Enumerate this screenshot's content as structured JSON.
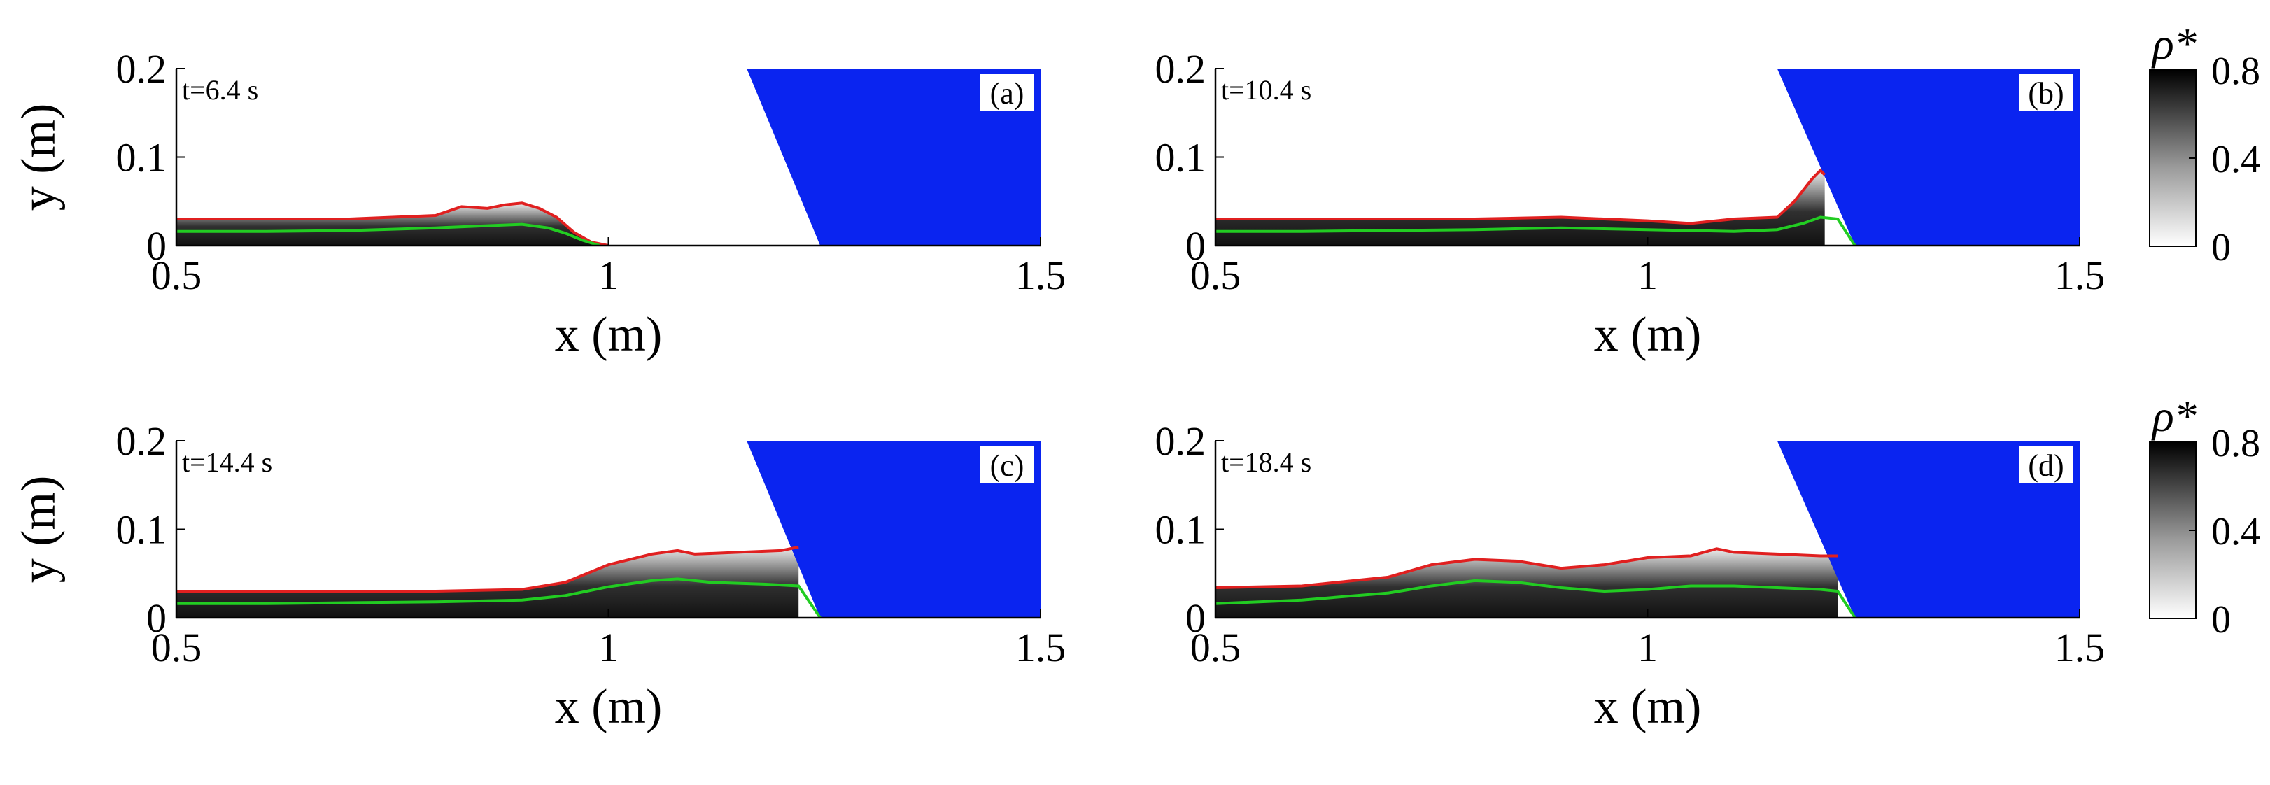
{
  "chart_data": [
    {
      "type": "area",
      "panel_label": "(a)",
      "time_label": "t=6.4 s",
      "xlabel": "x (m)",
      "ylabel": "y (m)",
      "xlim": [
        0.5,
        1.5
      ],
      "ylim": [
        0,
        0.2
      ],
      "x_ticks": [
        "0.5",
        "1",
        "1.5"
      ],
      "y_ticks": [
        "0",
        "0.1",
        "0.2"
      ],
      "obstacle_color": "#0a24f0",
      "obstacle_polygon": [
        [
          1.16,
          0.2
        ],
        [
          1.5,
          0.2
        ],
        [
          1.5,
          0
        ],
        [
          1.245,
          0
        ]
      ],
      "series": [
        {
          "color": "#e02020",
          "x": [
            0.5,
            0.6,
            0.7,
            0.75,
            0.8,
            0.83,
            0.86,
            0.88,
            0.9,
            0.92,
            0.94,
            0.96,
            0.98,
            1.0
          ],
          "y": [
            0.03,
            0.03,
            0.03,
            0.032,
            0.034,
            0.044,
            0.042,
            0.046,
            0.048,
            0.042,
            0.032,
            0.015,
            0.004,
            0.0
          ]
        },
        {
          "color": "#22cc22",
          "x": [
            0.5,
            0.6,
            0.7,
            0.8,
            0.85,
            0.9,
            0.93,
            0.95,
            0.97,
            0.99
          ],
          "y": [
            0.016,
            0.016,
            0.017,
            0.02,
            0.022,
            0.024,
            0.02,
            0.014,
            0.006,
            0.0
          ]
        }
      ]
    },
    {
      "type": "area",
      "panel_label": "(b)",
      "time_label": "t=10.4 s",
      "xlabel": "x (m)",
      "ylabel": "",
      "xlim": [
        0.5,
        1.5
      ],
      "ylim": [
        0,
        0.2
      ],
      "x_ticks": [
        "0.5",
        "1",
        "1.5"
      ],
      "y_ticks": [
        "0",
        "0.1",
        "0.2"
      ],
      "obstacle_color": "#0a24f0",
      "obstacle_polygon": [
        [
          1.15,
          0.2
        ],
        [
          1.5,
          0.2
        ],
        [
          1.5,
          0
        ],
        [
          1.24,
          0
        ]
      ],
      "series": [
        {
          "color": "#e02020",
          "x": [
            0.5,
            0.6,
            0.7,
            0.8,
            0.9,
            1.0,
            1.05,
            1.1,
            1.15,
            1.17,
            1.19,
            1.2,
            1.205
          ],
          "y": [
            0.03,
            0.03,
            0.03,
            0.03,
            0.032,
            0.028,
            0.025,
            0.03,
            0.032,
            0.05,
            0.075,
            0.085,
            0.08
          ]
        },
        {
          "color": "#22cc22",
          "x": [
            0.5,
            0.6,
            0.7,
            0.8,
            0.9,
            1.0,
            1.1,
            1.15,
            1.18,
            1.2,
            1.22,
            1.24
          ],
          "y": [
            0.016,
            0.016,
            0.017,
            0.018,
            0.02,
            0.018,
            0.016,
            0.018,
            0.025,
            0.032,
            0.03,
            0.0
          ]
        }
      ]
    },
    {
      "type": "area",
      "panel_label": "(c)",
      "time_label": "t=14.4 s",
      "xlabel": "x (m)",
      "ylabel": "y (m)",
      "xlim": [
        0.5,
        1.5
      ],
      "ylim": [
        0,
        0.2
      ],
      "x_ticks": [
        "0.5",
        "1",
        "1.5"
      ],
      "y_ticks": [
        "0",
        "0.1",
        "0.2"
      ],
      "obstacle_color": "#0a24f0",
      "obstacle_polygon": [
        [
          1.16,
          0.2
        ],
        [
          1.5,
          0.2
        ],
        [
          1.5,
          0
        ],
        [
          1.245,
          0
        ]
      ],
      "series": [
        {
          "color": "#e02020",
          "x": [
            0.5,
            0.6,
            0.7,
            0.8,
            0.9,
            0.95,
            1.0,
            1.05,
            1.08,
            1.1,
            1.15,
            1.2,
            1.22
          ],
          "y": [
            0.03,
            0.03,
            0.03,
            0.03,
            0.032,
            0.04,
            0.06,
            0.072,
            0.076,
            0.072,
            0.074,
            0.076,
            0.08
          ]
        },
        {
          "color": "#22cc22",
          "x": [
            0.5,
            0.6,
            0.7,
            0.8,
            0.9,
            0.95,
            1.0,
            1.05,
            1.08,
            1.12,
            1.18,
            1.22,
            1.245
          ],
          "y": [
            0.016,
            0.016,
            0.017,
            0.018,
            0.02,
            0.025,
            0.035,
            0.042,
            0.044,
            0.04,
            0.038,
            0.036,
            0.0
          ]
        }
      ]
    },
    {
      "type": "area",
      "panel_label": "(d)",
      "time_label": "t=18.4 s",
      "xlabel": "x (m)",
      "ylabel": "",
      "xlim": [
        0.5,
        1.5
      ],
      "ylim": [
        0,
        0.2
      ],
      "x_ticks": [
        "0.5",
        "1",
        "1.5"
      ],
      "y_ticks": [
        "0",
        "0.1",
        "0.2"
      ],
      "obstacle_color": "#0a24f0",
      "obstacle_polygon": [
        [
          1.15,
          0.2
        ],
        [
          1.5,
          0.2
        ],
        [
          1.5,
          0
        ],
        [
          1.24,
          0
        ]
      ],
      "series": [
        {
          "color": "#e02020",
          "x": [
            0.5,
            0.6,
            0.7,
            0.75,
            0.8,
            0.85,
            0.9,
            0.95,
            1.0,
            1.05,
            1.08,
            1.1,
            1.15,
            1.2,
            1.22
          ],
          "y": [
            0.034,
            0.036,
            0.046,
            0.06,
            0.066,
            0.064,
            0.056,
            0.06,
            0.068,
            0.07,
            0.078,
            0.074,
            0.072,
            0.07,
            0.07
          ]
        },
        {
          "color": "#22cc22",
          "x": [
            0.5,
            0.6,
            0.7,
            0.75,
            0.8,
            0.85,
            0.9,
            0.95,
            1.0,
            1.05,
            1.1,
            1.15,
            1.2,
            1.22,
            1.24
          ],
          "y": [
            0.016,
            0.02,
            0.028,
            0.036,
            0.042,
            0.04,
            0.034,
            0.03,
            0.032,
            0.036,
            0.036,
            0.034,
            0.032,
            0.03,
            0.0
          ]
        }
      ]
    }
  ],
  "colorbars": [
    {
      "title": "ρ*",
      "ticks": [
        "0",
        "0.4",
        "0.8"
      ],
      "values": [
        0,
        0.4,
        0.8
      ],
      "range": [
        0,
        0.8
      ],
      "colors": [
        "#ffffff",
        "#000000"
      ]
    },
    {
      "title": "ρ*",
      "ticks": [
        "0",
        "0.4",
        "0.8"
      ],
      "values": [
        0,
        0.4,
        0.8
      ],
      "range": [
        0,
        0.8
      ],
      "colors": [
        "#ffffff",
        "#000000"
      ]
    }
  ]
}
